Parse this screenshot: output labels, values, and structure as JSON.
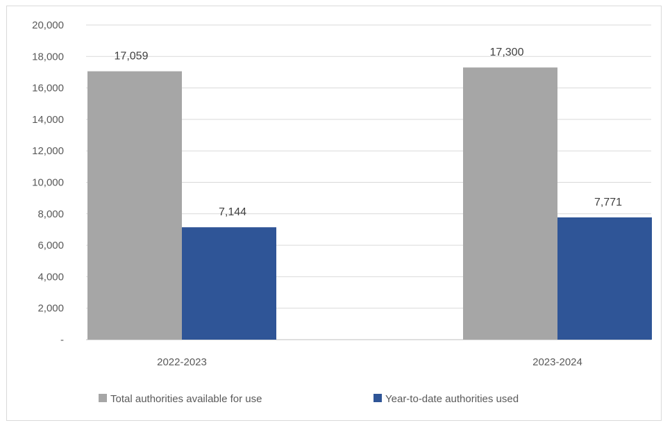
{
  "chart_data": {
    "type": "bar",
    "categories": [
      "2022-2023",
      "2023-2024"
    ],
    "series": [
      {
        "name": "Total authorities available for use",
        "values": [
          17059,
          17300
        ],
        "labels": [
          "17,059",
          "17,300"
        ],
        "color": "#a6a6a6"
      },
      {
        "name": "Year-to-date authorities used",
        "values": [
          7144,
          7771
        ],
        "labels": [
          "7,144",
          "7,771"
        ],
        "color": "#2f5597"
      }
    ],
    "ylim": [
      0,
      20000
    ],
    "y_ticks": [
      {
        "value": 0,
        "label": "-"
      },
      {
        "value": 2000,
        "label": "2,000"
      },
      {
        "value": 4000,
        "label": "4,000"
      },
      {
        "value": 6000,
        "label": "6,000"
      },
      {
        "value": 8000,
        "label": "8,000"
      },
      {
        "value": 10000,
        "label": "10,000"
      },
      {
        "value": 12000,
        "label": "12,000"
      },
      {
        "value": 14000,
        "label": "14,000"
      },
      {
        "value": 16000,
        "label": "16,000"
      },
      {
        "value": 18000,
        "label": "18,000"
      },
      {
        "value": 20000,
        "label": "20,000"
      }
    ],
    "grid": true,
    "legend_position": "bottom",
    "title": "",
    "xlabel": "",
    "ylabel": ""
  },
  "colors": {
    "gridline": "#d9d9d9",
    "axis": "#bfbfbf"
  }
}
